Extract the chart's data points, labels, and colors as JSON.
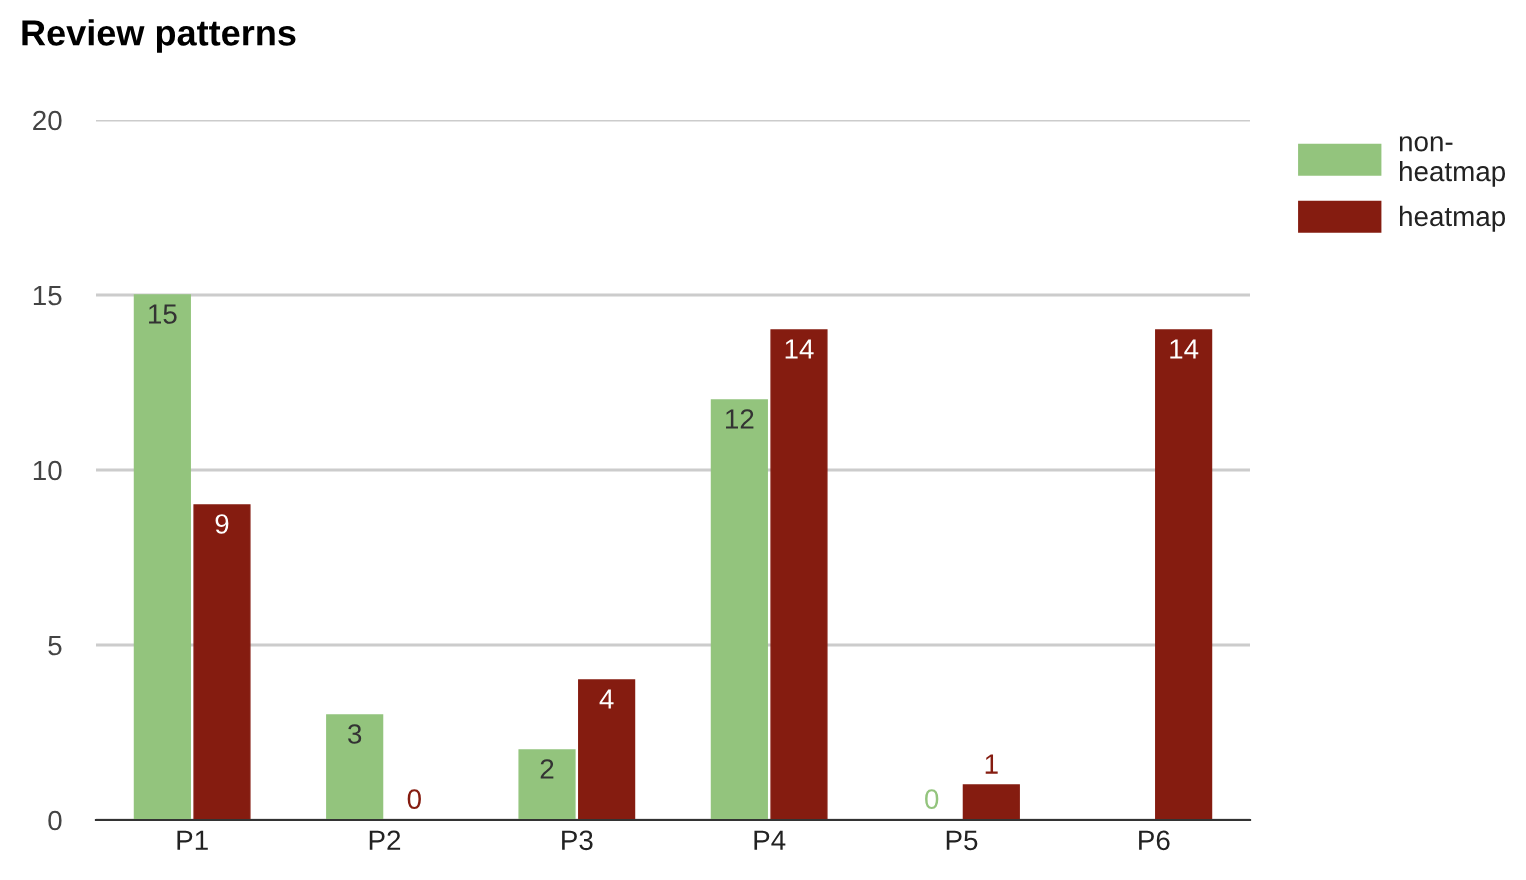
{
  "chart_data": {
    "type": "bar",
    "title": "Review patterns",
    "categories": [
      "P1",
      "P2",
      "P3",
      "P4",
      "P5",
      "P6"
    ],
    "series": [
      {
        "name": "non-heatmap",
        "color": "#93c47d",
        "values": [
          15,
          3,
          2,
          12,
          0,
          null
        ]
      },
      {
        "name": "heatmap",
        "color": "#851c10",
        "values": [
          9,
          0,
          4,
          14,
          1,
          14
        ]
      }
    ],
    "ylim": [
      0,
      20
    ],
    "yticks": [
      0,
      5,
      10,
      15,
      20
    ],
    "grid": "y",
    "legend": "top right",
    "data_labels": true
  }
}
